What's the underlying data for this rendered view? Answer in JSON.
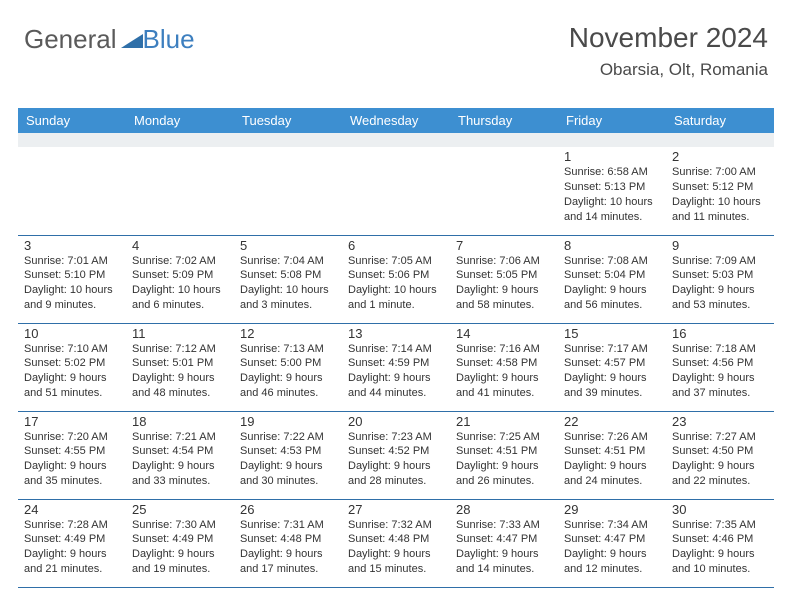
{
  "logo": {
    "word1": "General",
    "word2": "Blue",
    "triangle_color": "#2f6fa8"
  },
  "header": {
    "month": "November 2024",
    "location": "Obarsia, Olt, Romania"
  },
  "colors": {
    "header_bg": "#3d8fd1",
    "header_text": "#ffffff",
    "border": "#2f6fa8",
    "gray_row": "#eceff1",
    "text": "#333333"
  },
  "day_names": [
    "Sunday",
    "Monday",
    "Tuesday",
    "Wednesday",
    "Thursday",
    "Friday",
    "Saturday"
  ],
  "weeks": [
    [
      null,
      null,
      null,
      null,
      null,
      {
        "n": "1",
        "sr": "6:58 AM",
        "ss": "5:13 PM",
        "dl": "10 hours and 14 minutes."
      },
      {
        "n": "2",
        "sr": "7:00 AM",
        "ss": "5:12 PM",
        "dl": "10 hours and 11 minutes."
      }
    ],
    [
      {
        "n": "3",
        "sr": "7:01 AM",
        "ss": "5:10 PM",
        "dl": "10 hours and 9 minutes."
      },
      {
        "n": "4",
        "sr": "7:02 AM",
        "ss": "5:09 PM",
        "dl": "10 hours and 6 minutes."
      },
      {
        "n": "5",
        "sr": "7:04 AM",
        "ss": "5:08 PM",
        "dl": "10 hours and 3 minutes."
      },
      {
        "n": "6",
        "sr": "7:05 AM",
        "ss": "5:06 PM",
        "dl": "10 hours and 1 minute."
      },
      {
        "n": "7",
        "sr": "7:06 AM",
        "ss": "5:05 PM",
        "dl": "9 hours and 58 minutes."
      },
      {
        "n": "8",
        "sr": "7:08 AM",
        "ss": "5:04 PM",
        "dl": "9 hours and 56 minutes."
      },
      {
        "n": "9",
        "sr": "7:09 AM",
        "ss": "5:03 PM",
        "dl": "9 hours and 53 minutes."
      }
    ],
    [
      {
        "n": "10",
        "sr": "7:10 AM",
        "ss": "5:02 PM",
        "dl": "9 hours and 51 minutes."
      },
      {
        "n": "11",
        "sr": "7:12 AM",
        "ss": "5:01 PM",
        "dl": "9 hours and 48 minutes."
      },
      {
        "n": "12",
        "sr": "7:13 AM",
        "ss": "5:00 PM",
        "dl": "9 hours and 46 minutes."
      },
      {
        "n": "13",
        "sr": "7:14 AM",
        "ss": "4:59 PM",
        "dl": "9 hours and 44 minutes."
      },
      {
        "n": "14",
        "sr": "7:16 AM",
        "ss": "4:58 PM",
        "dl": "9 hours and 41 minutes."
      },
      {
        "n": "15",
        "sr": "7:17 AM",
        "ss": "4:57 PM",
        "dl": "9 hours and 39 minutes."
      },
      {
        "n": "16",
        "sr": "7:18 AM",
        "ss": "4:56 PM",
        "dl": "9 hours and 37 minutes."
      }
    ],
    [
      {
        "n": "17",
        "sr": "7:20 AM",
        "ss": "4:55 PM",
        "dl": "9 hours and 35 minutes."
      },
      {
        "n": "18",
        "sr": "7:21 AM",
        "ss": "4:54 PM",
        "dl": "9 hours and 33 minutes."
      },
      {
        "n": "19",
        "sr": "7:22 AM",
        "ss": "4:53 PM",
        "dl": "9 hours and 30 minutes."
      },
      {
        "n": "20",
        "sr": "7:23 AM",
        "ss": "4:52 PM",
        "dl": "9 hours and 28 minutes."
      },
      {
        "n": "21",
        "sr": "7:25 AM",
        "ss": "4:51 PM",
        "dl": "9 hours and 26 minutes."
      },
      {
        "n": "22",
        "sr": "7:26 AM",
        "ss": "4:51 PM",
        "dl": "9 hours and 24 minutes."
      },
      {
        "n": "23",
        "sr": "7:27 AM",
        "ss": "4:50 PM",
        "dl": "9 hours and 22 minutes."
      }
    ],
    [
      {
        "n": "24",
        "sr": "7:28 AM",
        "ss": "4:49 PM",
        "dl": "9 hours and 21 minutes."
      },
      {
        "n": "25",
        "sr": "7:30 AM",
        "ss": "4:49 PM",
        "dl": "9 hours and 19 minutes."
      },
      {
        "n": "26",
        "sr": "7:31 AM",
        "ss": "4:48 PM",
        "dl": "9 hours and 17 minutes."
      },
      {
        "n": "27",
        "sr": "7:32 AM",
        "ss": "4:48 PM",
        "dl": "9 hours and 15 minutes."
      },
      {
        "n": "28",
        "sr": "7:33 AM",
        "ss": "4:47 PM",
        "dl": "9 hours and 14 minutes."
      },
      {
        "n": "29",
        "sr": "7:34 AM",
        "ss": "4:47 PM",
        "dl": "9 hours and 12 minutes."
      },
      {
        "n": "30",
        "sr": "7:35 AM",
        "ss": "4:46 PM",
        "dl": "9 hours and 10 minutes."
      }
    ]
  ],
  "labels": {
    "sunrise": "Sunrise:",
    "sunset": "Sunset:",
    "daylight": "Daylight:"
  }
}
